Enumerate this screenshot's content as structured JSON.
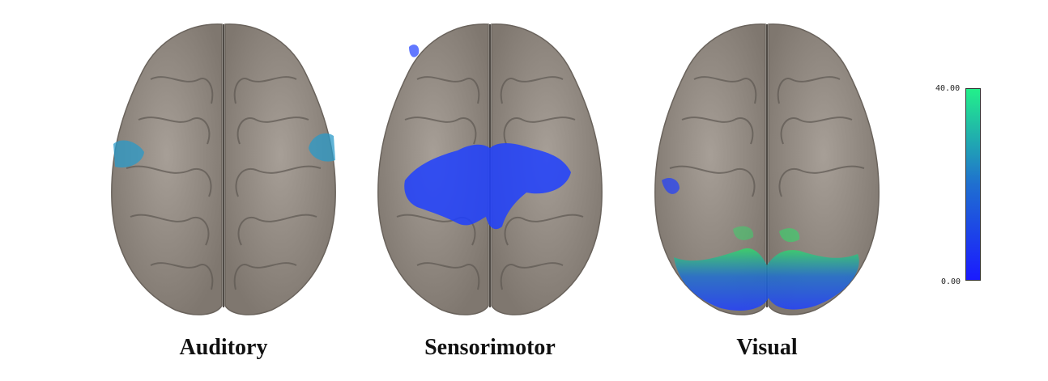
{
  "panels": [
    {
      "label": "Auditory"
    },
    {
      "label": "Sensorimotor"
    },
    {
      "label": "Visual"
    }
  ],
  "colorbar": {
    "max_label": "40.00",
    "min_label": "0.00",
    "low_color": "#1a1aff",
    "mid_color": "#1f6fd0",
    "high_color": "#22f08a"
  },
  "colors": {
    "brain_fill": "#8f877f",
    "brain_highlight": "#a79f97",
    "sulcus": "#5e5852",
    "activation_blue": "#1f3fff",
    "activation_teal": "#2a9ac8",
    "activation_green": "#33d86a"
  }
}
